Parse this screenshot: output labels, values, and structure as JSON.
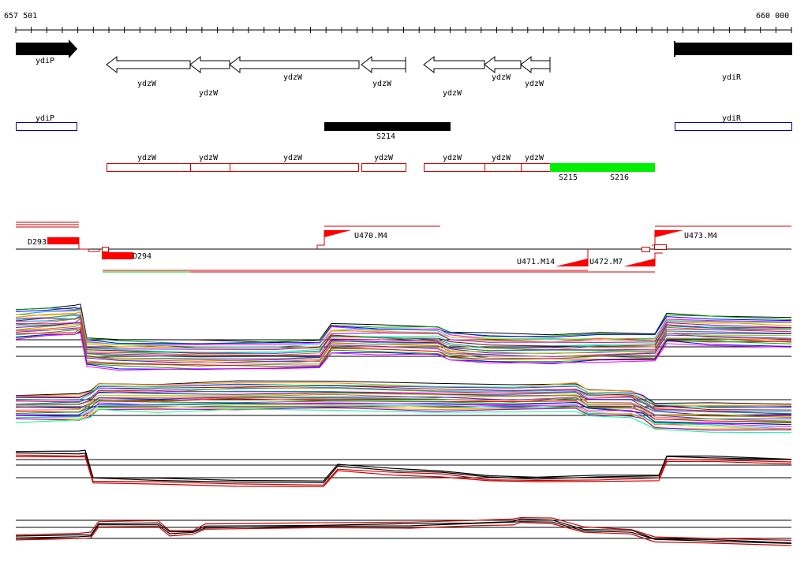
{
  "ruler": {
    "start_label": "657 501",
    "end_label": "660 000"
  },
  "genes": [
    {
      "label": "ydiP"
    },
    {
      "label": "ydzW"
    },
    {
      "label": "ydzW"
    },
    {
      "label": "ydzW"
    },
    {
      "label": "ydzW"
    },
    {
      "label": "ydzW"
    },
    {
      "label": "ydzW"
    },
    {
      "label": "ydzW"
    },
    {
      "label": "ydiR"
    }
  ],
  "annotations": [
    {
      "label": "ydiP"
    },
    {
      "label": "S214"
    },
    {
      "label": "ydiR"
    },
    {
      "label": "ydzW"
    },
    {
      "label": "ydzW"
    },
    {
      "label": "ydzW"
    },
    {
      "label": "ydzW"
    },
    {
      "label": "ydzW"
    },
    {
      "label": "ydzW"
    },
    {
      "label": "ydzW"
    },
    {
      "label": "S215"
    },
    {
      "label": "S216"
    }
  ],
  "features": [
    {
      "label": "D293"
    },
    {
      "label": "D294"
    },
    {
      "label": "U470.M4"
    },
    {
      "label": "U471.M14"
    },
    {
      "label": "U472.M7"
    },
    {
      "label": "U473.M4"
    }
  ],
  "colors": {
    "forward_gene": "#000000",
    "reverse_gene": "#ffffff",
    "annotation_blue": "#0000aa",
    "annotation_red": "#cc0000",
    "segment_black": "#000000",
    "segment_green": "#00ee00",
    "feature_red": "#ff0000"
  },
  "icons": [
    "forward-arrow-icon",
    "reverse-arrow-icon"
  ]
}
